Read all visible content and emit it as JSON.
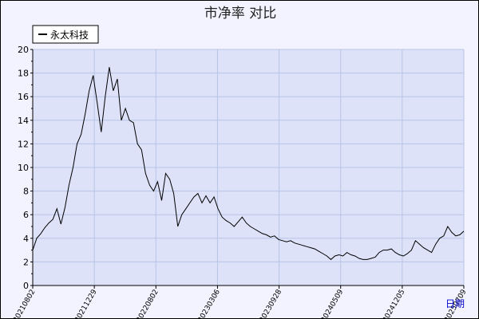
{
  "chart_data": {
    "type": "line",
    "title": "市净率  对比",
    "xlabel": "日期",
    "ylabel": "",
    "ylim": [
      0,
      20
    ],
    "y_ticks": [
      0,
      2,
      4,
      6,
      8,
      10,
      12,
      14,
      16,
      18,
      20
    ],
    "x_tick_labels": [
      "20210802",
      "20211229",
      "20220802",
      "20230306",
      "20230928",
      "20240509",
      "20241205",
      "20250709"
    ],
    "legend": {
      "placement": "top-left",
      "entries": [
        "永太科技"
      ]
    },
    "grid": true,
    "series": [
      {
        "name": "永太科技",
        "color": "#000000",
        "points": [
          [
            0,
            3.0
          ],
          [
            1,
            4.0
          ],
          [
            2,
            4.4
          ],
          [
            3,
            4.9
          ],
          [
            4,
            5.3
          ],
          [
            5,
            5.6
          ],
          [
            6,
            6.5
          ],
          [
            7,
            5.2
          ],
          [
            8,
            6.6
          ],
          [
            9,
            8.5
          ],
          [
            10,
            10.0
          ],
          [
            11,
            12.0
          ],
          [
            12,
            12.8
          ],
          [
            13,
            14.5
          ],
          [
            14,
            16.5
          ],
          [
            15,
            17.8
          ],
          [
            16,
            15.5
          ],
          [
            17,
            13.0
          ],
          [
            18,
            16.0
          ],
          [
            19,
            18.5
          ],
          [
            20,
            16.5
          ],
          [
            21,
            17.5
          ],
          [
            22,
            14.0
          ],
          [
            23,
            15.0
          ],
          [
            24,
            14.0
          ],
          [
            25,
            13.8
          ],
          [
            26,
            12.0
          ],
          [
            27,
            11.5
          ],
          [
            28,
            9.5
          ],
          [
            29,
            8.5
          ],
          [
            30,
            8.0
          ],
          [
            31,
            8.8
          ],
          [
            32,
            7.2
          ],
          [
            33,
            9.5
          ],
          [
            34,
            9.0
          ],
          [
            35,
            7.8
          ],
          [
            36,
            5.0
          ],
          [
            37,
            6.0
          ],
          [
            38,
            6.5
          ],
          [
            39,
            7.0
          ],
          [
            40,
            7.5
          ],
          [
            41,
            7.8
          ],
          [
            42,
            7.0
          ],
          [
            43,
            7.6
          ],
          [
            44,
            7.0
          ],
          [
            45,
            7.5
          ],
          [
            46,
            6.5
          ],
          [
            47,
            5.8
          ],
          [
            48,
            5.5
          ],
          [
            49,
            5.3
          ],
          [
            50,
            5.0
          ],
          [
            51,
            5.4
          ],
          [
            52,
            5.8
          ],
          [
            53,
            5.3
          ],
          [
            54,
            5.0
          ],
          [
            55,
            4.8
          ],
          [
            56,
            4.6
          ],
          [
            57,
            4.4
          ],
          [
            58,
            4.3
          ],
          [
            59,
            4.1
          ],
          [
            60,
            4.2
          ],
          [
            61,
            3.9
          ],
          [
            62,
            3.8
          ],
          [
            63,
            3.7
          ],
          [
            64,
            3.8
          ],
          [
            65,
            3.6
          ],
          [
            66,
            3.5
          ],
          [
            67,
            3.4
          ],
          [
            68,
            3.3
          ],
          [
            69,
            3.2
          ],
          [
            70,
            3.1
          ],
          [
            71,
            2.9
          ],
          [
            72,
            2.7
          ],
          [
            73,
            2.5
          ],
          [
            74,
            2.2
          ],
          [
            75,
            2.5
          ],
          [
            76,
            2.6
          ],
          [
            77,
            2.5
          ],
          [
            78,
            2.8
          ],
          [
            79,
            2.6
          ],
          [
            80,
            2.5
          ],
          [
            81,
            2.3
          ],
          [
            82,
            2.2
          ],
          [
            83,
            2.2
          ],
          [
            84,
            2.3
          ],
          [
            85,
            2.4
          ],
          [
            86,
            2.8
          ],
          [
            87,
            3.0
          ],
          [
            88,
            3.0
          ],
          [
            89,
            3.1
          ],
          [
            90,
            2.8
          ],
          [
            91,
            2.6
          ],
          [
            92,
            2.5
          ],
          [
            93,
            2.7
          ],
          [
            94,
            3.0
          ],
          [
            95,
            3.8
          ],
          [
            96,
            3.5
          ],
          [
            97,
            3.2
          ],
          [
            98,
            3.0
          ],
          [
            99,
            2.8
          ],
          [
            100,
            3.5
          ],
          [
            101,
            4.0
          ],
          [
            102,
            4.2
          ],
          [
            103,
            5.0
          ],
          [
            104,
            4.5
          ],
          [
            105,
            4.2
          ],
          [
            106,
            4.3
          ],
          [
            107,
            4.6
          ]
        ]
      }
    ]
  }
}
